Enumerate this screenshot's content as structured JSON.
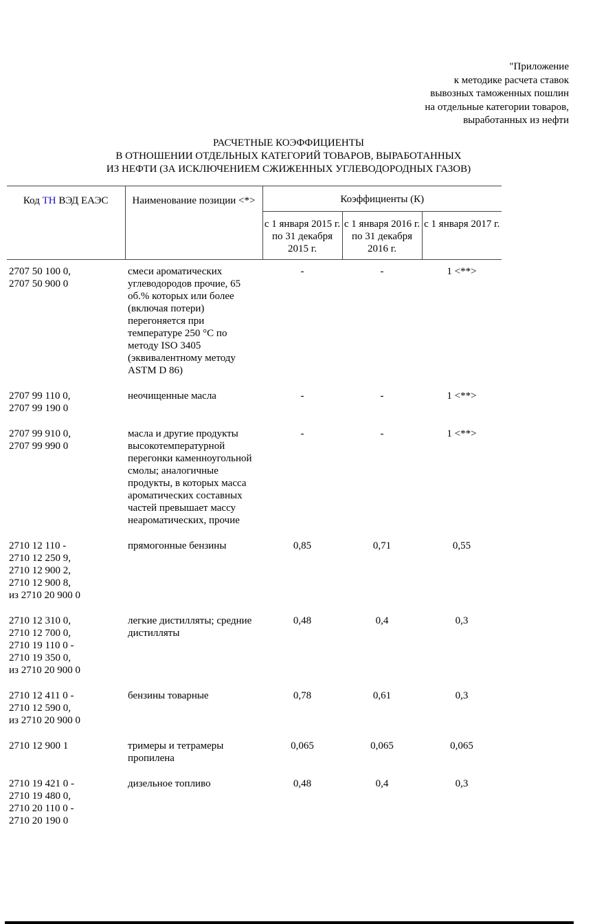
{
  "appendix_lines": [
    "\"Приложение",
    "к методике расчета ставок",
    "вывозных таможенных пошлин",
    "на отдельные категории товаров,",
    "выработанных из нефти"
  ],
  "title_lines": [
    "РАСЧЕТНЫЕ КОЭФФИЦИЕНТЫ",
    "В ОТНОШЕНИИ ОТДЕЛЬНЫХ КАТЕГОРИЙ ТОВАРОВ, ВЫРАБОТАННЫХ",
    "ИЗ НЕФТИ (ЗА ИСКЛЮЧЕНИЕМ СЖИЖЕННЫХ УГЛЕВОДОРОДНЫХ ГАЗОВ)"
  ],
  "table": {
    "header": {
      "code_prefix": "Код ",
      "code_link": "ТН",
      "code_suffix": " ВЭД ЕАЭС",
      "name": "Наименование позиции <*>",
      "coefficients": "Коэффициенты (К)",
      "periods": [
        "с 1 января 2015 г. по 31 декабря 2015 г.",
        "с 1 января 2016 г. по 31 декабря 2016 г.",
        "с 1 января 2017 г."
      ]
    },
    "rows": [
      {
        "code": [
          "2707 50 100 0,",
          "2707 50 900 0"
        ],
        "name": "смеси ароматических углеводородов прочие, 65 об.% которых или более (включая потери) перегоняется при температуре 250 °C по методу ISO 3405 (эквивалентному методу ASTM D 86)",
        "k": [
          "-",
          "-",
          "1 <**>"
        ]
      },
      {
        "code": [
          "2707 99 110 0,",
          "2707 99 190 0"
        ],
        "name": "неочищенные масла",
        "k": [
          "-",
          "-",
          "1 <**>"
        ]
      },
      {
        "code": [
          "2707 99 910 0,",
          "2707 99 990 0"
        ],
        "name": "масла и другие продукты высокотемпературной перегонки каменноугольной смолы; аналогичные продукты, в которых масса ароматических составных частей превышает массу неароматических, прочие",
        "k": [
          "-",
          "-",
          "1 <**>"
        ]
      },
      {
        "code": [
          "2710 12 110 -",
          "2710 12 250 9,",
          "2710 12 900 2,",
          "2710 12 900 8,",
          "из 2710 20 900 0"
        ],
        "name": "прямогонные бензины",
        "k": [
          "0,85",
          "0,71",
          "0,55"
        ]
      },
      {
        "code": [
          "2710 12 310 0,",
          "2710 12 700 0,",
          "2710 19 110 0 -",
          "2710 19 350 0,",
          "из 2710 20 900 0"
        ],
        "name": "легкие дистилляты; средние дистилляты",
        "k": [
          "0,48",
          "0,4",
          "0,3"
        ]
      },
      {
        "code": [
          "2710 12 411 0 -",
          "2710 12 590 0,",
          "из 2710 20 900 0"
        ],
        "name": "бензины товарные",
        "k": [
          "0,78",
          "0,61",
          "0,3"
        ]
      },
      {
        "code": [
          "2710 12 900 1"
        ],
        "name": "тримеры и тетрамеры пропилена",
        "k": [
          "0,065",
          "0,065",
          "0,065"
        ]
      },
      {
        "code": [
          "2710 19 421 0 -",
          "2710 19 480 0,",
          "2710 20 110 0 -",
          "2710 20 190 0"
        ],
        "name": "дизельное топливо",
        "k": [
          "0,48",
          "0,4",
          "0,3"
        ]
      }
    ]
  },
  "colors": {
    "link": "#1a0dcc"
  }
}
